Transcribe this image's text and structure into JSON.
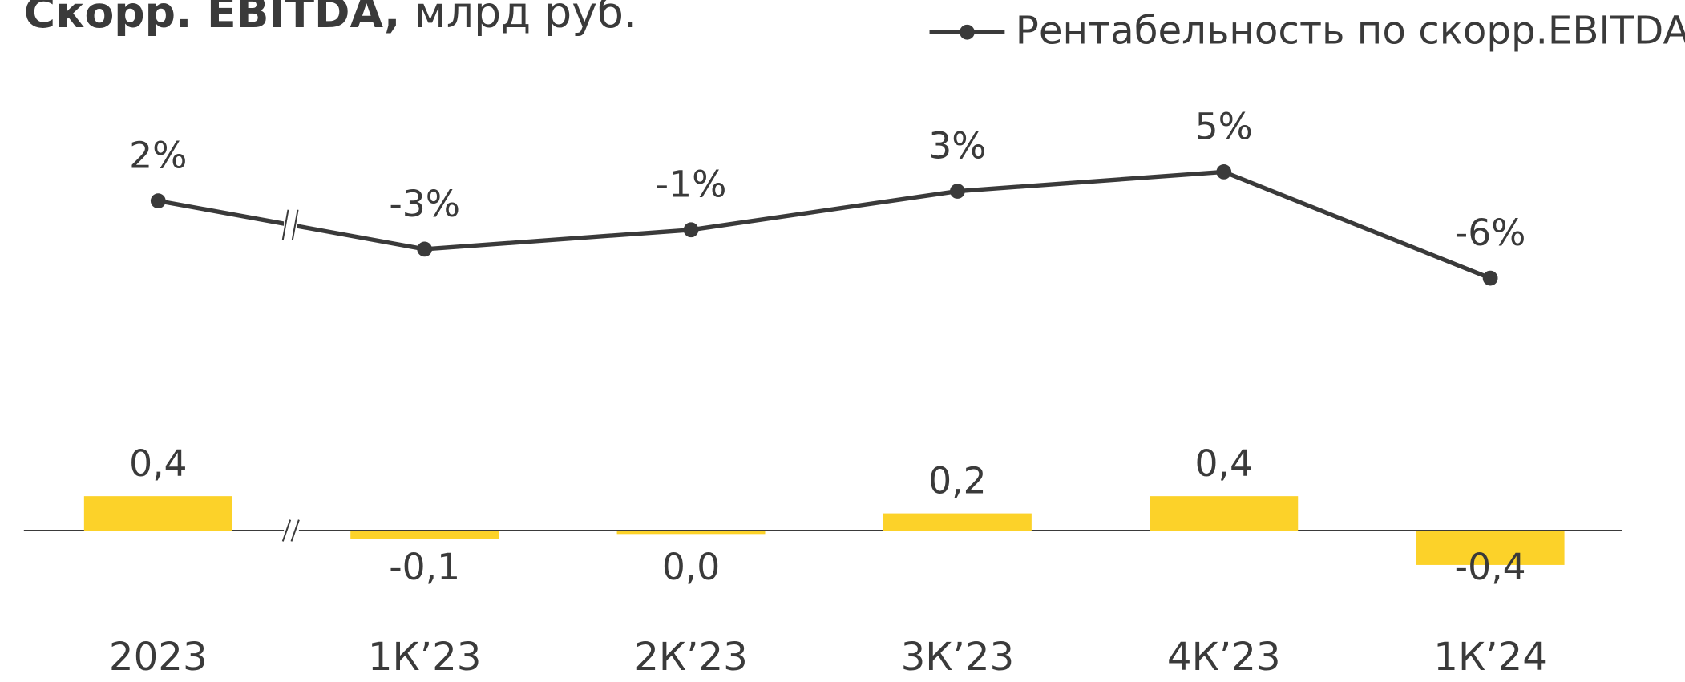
{
  "chart_data": {
    "type": "bar_line",
    "title_bold": "Скорр. EBITDA,",
    "title_regular": " млрд руб.",
    "categories": [
      "2023",
      "1К’23",
      "2К’23",
      "3К’23",
      "4К’23",
      "1К’24"
    ],
    "series": [
      {
        "name": "Скорр. EBITDA",
        "type": "bar",
        "color": "#fcd229",
        "values": [
          0.4,
          -0.1,
          -0.04,
          0.2,
          0.4,
          -0.4
        ],
        "value_labels": [
          "0,4",
          "-0,1",
          "0,0",
          "0,2",
          "0,4",
          "-0,4"
        ]
      },
      {
        "name": "Рентабельность по скорр.EBITDA",
        "type": "line",
        "axis": "y2",
        "color": "#3a3a3a",
        "values": [
          2,
          -3,
          -1,
          3,
          5,
          -6
        ],
        "value_labels": [
          "2%",
          "-3%",
          "-1%",
          "3%",
          "5%",
          "-6%"
        ]
      }
    ],
    "ylim": [
      -0.4,
      0.4
    ],
    "y2lim": [
      -6,
      5
    ]
  }
}
